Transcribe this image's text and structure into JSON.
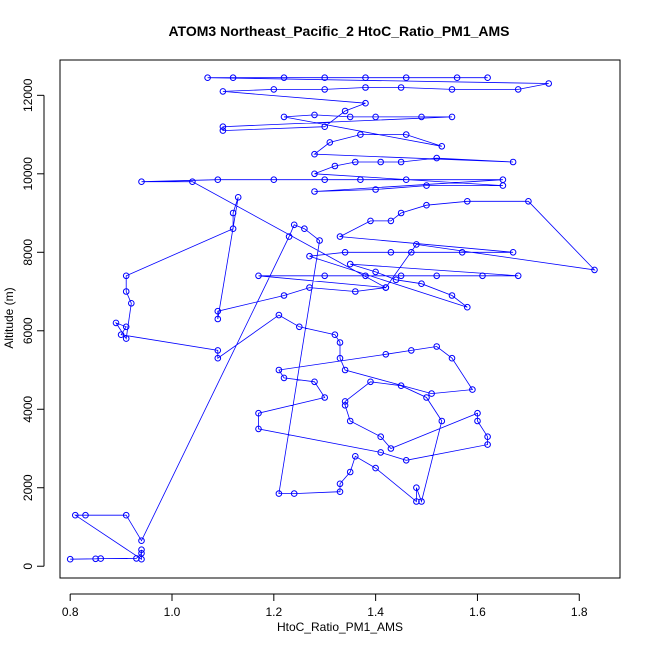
{
  "chart_data": {
    "type": "scatter",
    "title": "ATOM3 Northeast_Pacific_2 HtoC_Ratio_PM1_AMS",
    "xlabel": "HtoC_Ratio_PM1_AMS",
    "ylabel": "Altitude (m)",
    "xlim": [
      0.78,
      1.88
    ],
    "ylim": [
      -300,
      12900
    ],
    "xticks": [
      "0.8",
      "1.0",
      "1.2",
      "1.4",
      "1.6",
      "1.8"
    ],
    "yticks": [
      "0",
      "2000",
      "4000",
      "6000",
      "8000",
      "10000",
      "12000"
    ],
    "marker": "open-circle",
    "connected": true,
    "color": "#0000ff",
    "grid": false,
    "series": [
      {
        "points": [
          [
            0.8,
            180
          ],
          [
            0.85,
            190
          ],
          [
            0.86,
            195
          ],
          [
            0.93,
            200
          ],
          [
            0.94,
            330
          ],
          [
            0.94,
            420
          ],
          [
            0.94,
            180
          ],
          [
            0.81,
            1300
          ],
          [
            0.83,
            1300
          ],
          [
            0.91,
            1300
          ],
          [
            0.94,
            650
          ],
          [
            1.23,
            8400
          ],
          [
            1.24,
            8700
          ],
          [
            1.26,
            8600
          ],
          [
            1.29,
            8300
          ],
          [
            1.21,
            1850
          ],
          [
            1.24,
            1850
          ],
          [
            1.33,
            1900
          ],
          [
            1.33,
            2100
          ],
          [
            1.35,
            2400
          ],
          [
            1.36,
            2800
          ],
          [
            1.4,
            2500
          ],
          [
            1.48,
            1650
          ],
          [
            1.48,
            2000
          ],
          [
            1.49,
            1650
          ],
          [
            1.53,
            3700
          ],
          [
            1.5,
            4300
          ],
          [
            1.45,
            4600
          ],
          [
            1.39,
            4700
          ],
          [
            1.34,
            4200
          ],
          [
            1.34,
            4100
          ],
          [
            1.35,
            3700
          ],
          [
            1.41,
            3300
          ],
          [
            1.43,
            3000
          ],
          [
            1.6,
            3900
          ],
          [
            1.6,
            3700
          ],
          [
            1.62,
            3300
          ],
          [
            1.62,
            3100
          ],
          [
            1.46,
            2700
          ],
          [
            1.41,
            2900
          ],
          [
            1.17,
            3500
          ],
          [
            1.17,
            3900
          ],
          [
            1.3,
            4300
          ],
          [
            1.28,
            4700
          ],
          [
            1.22,
            4800
          ],
          [
            1.21,
            5000
          ],
          [
            1.42,
            5400
          ],
          [
            1.47,
            5500
          ],
          [
            1.52,
            5600
          ],
          [
            1.55,
            5300
          ],
          [
            1.59,
            4500
          ],
          [
            1.51,
            4400
          ],
          [
            1.34,
            5000
          ],
          [
            1.33,
            5300
          ],
          [
            1.33,
            5700
          ],
          [
            1.32,
            5900
          ],
          [
            1.25,
            6100
          ],
          [
            1.21,
            6400
          ],
          [
            1.09,
            5300
          ],
          [
            1.09,
            5500
          ],
          [
            0.9,
            5900
          ],
          [
            0.91,
            6100
          ],
          [
            0.89,
            6200
          ],
          [
            0.91,
            5800
          ],
          [
            0.92,
            6700
          ],
          [
            0.91,
            7000
          ],
          [
            0.91,
            7400
          ],
          [
            1.12,
            8600
          ],
          [
            1.12,
            9000
          ],
          [
            1.13,
            9400
          ],
          [
            1.09,
            6300
          ],
          [
            1.09,
            6500
          ],
          [
            1.22,
            6900
          ],
          [
            1.27,
            7100
          ],
          [
            1.36,
            7000
          ],
          [
            1.42,
            7100
          ],
          [
            1.17,
            7400
          ],
          [
            1.3,
            7400
          ],
          [
            1.38,
            7400
          ],
          [
            1.45,
            7400
          ],
          [
            1.52,
            7400
          ],
          [
            1.61,
            7400
          ],
          [
            1.68,
            7400
          ],
          [
            1.35,
            7700
          ],
          [
            1.4,
            7500
          ],
          [
            1.44,
            7300
          ],
          [
            1.49,
            7200
          ],
          [
            1.55,
            6900
          ],
          [
            1.58,
            6600
          ],
          [
            1.27,
            7900
          ],
          [
            1.34,
            8000
          ],
          [
            1.43,
            8000
          ],
          [
            1.47,
            8000
          ],
          [
            1.57,
            8000
          ],
          [
            1.67,
            8000
          ],
          [
            1.33,
            8400
          ],
          [
            1.39,
            8800
          ],
          [
            1.43,
            8800
          ],
          [
            1.45,
            9000
          ],
          [
            1.5,
            9200
          ],
          [
            1.58,
            9300
          ],
          [
            1.7,
            9300
          ],
          [
            1.83,
            7550
          ],
          [
            1.48,
            8200
          ],
          [
            1.42,
            7100
          ],
          [
            1.04,
            9800
          ],
          [
            0.94,
            9800
          ],
          [
            1.09,
            9850
          ],
          [
            1.2,
            9850
          ],
          [
            1.3,
            9850
          ],
          [
            1.37,
            9850
          ],
          [
            1.46,
            9850
          ],
          [
            1.65,
            9850
          ],
          [
            1.28,
            9550
          ],
          [
            1.4,
            9600
          ],
          [
            1.5,
            9700
          ],
          [
            1.65,
            9700
          ],
          [
            1.28,
            10000
          ],
          [
            1.32,
            10200
          ],
          [
            1.36,
            10300
          ],
          [
            1.41,
            10300
          ],
          [
            1.45,
            10300
          ],
          [
            1.52,
            10400
          ],
          [
            1.67,
            10300
          ],
          [
            1.28,
            10500
          ],
          [
            1.31,
            10800
          ],
          [
            1.37,
            11000
          ],
          [
            1.46,
            11000
          ],
          [
            1.53,
            10700
          ],
          [
            1.22,
            11450
          ],
          [
            1.28,
            11500
          ],
          [
            1.35,
            11450
          ],
          [
            1.4,
            11450
          ],
          [
            1.49,
            11450
          ],
          [
            1.55,
            11450
          ],
          [
            1.1,
            11200
          ],
          [
            1.1,
            11100
          ],
          [
            1.3,
            11200
          ],
          [
            1.34,
            11600
          ],
          [
            1.38,
            11800
          ],
          [
            1.1,
            12100
          ],
          [
            1.2,
            12150
          ],
          [
            1.3,
            12150
          ],
          [
            1.38,
            12200
          ],
          [
            1.45,
            12200
          ],
          [
            1.55,
            12150
          ],
          [
            1.68,
            12150
          ],
          [
            1.74,
            12300
          ],
          [
            1.07,
            12450
          ],
          [
            1.12,
            12450
          ],
          [
            1.22,
            12450
          ],
          [
            1.3,
            12450
          ],
          [
            1.38,
            12450
          ],
          [
            1.46,
            12450
          ],
          [
            1.56,
            12450
          ],
          [
            1.62,
            12450
          ]
        ]
      }
    ]
  }
}
